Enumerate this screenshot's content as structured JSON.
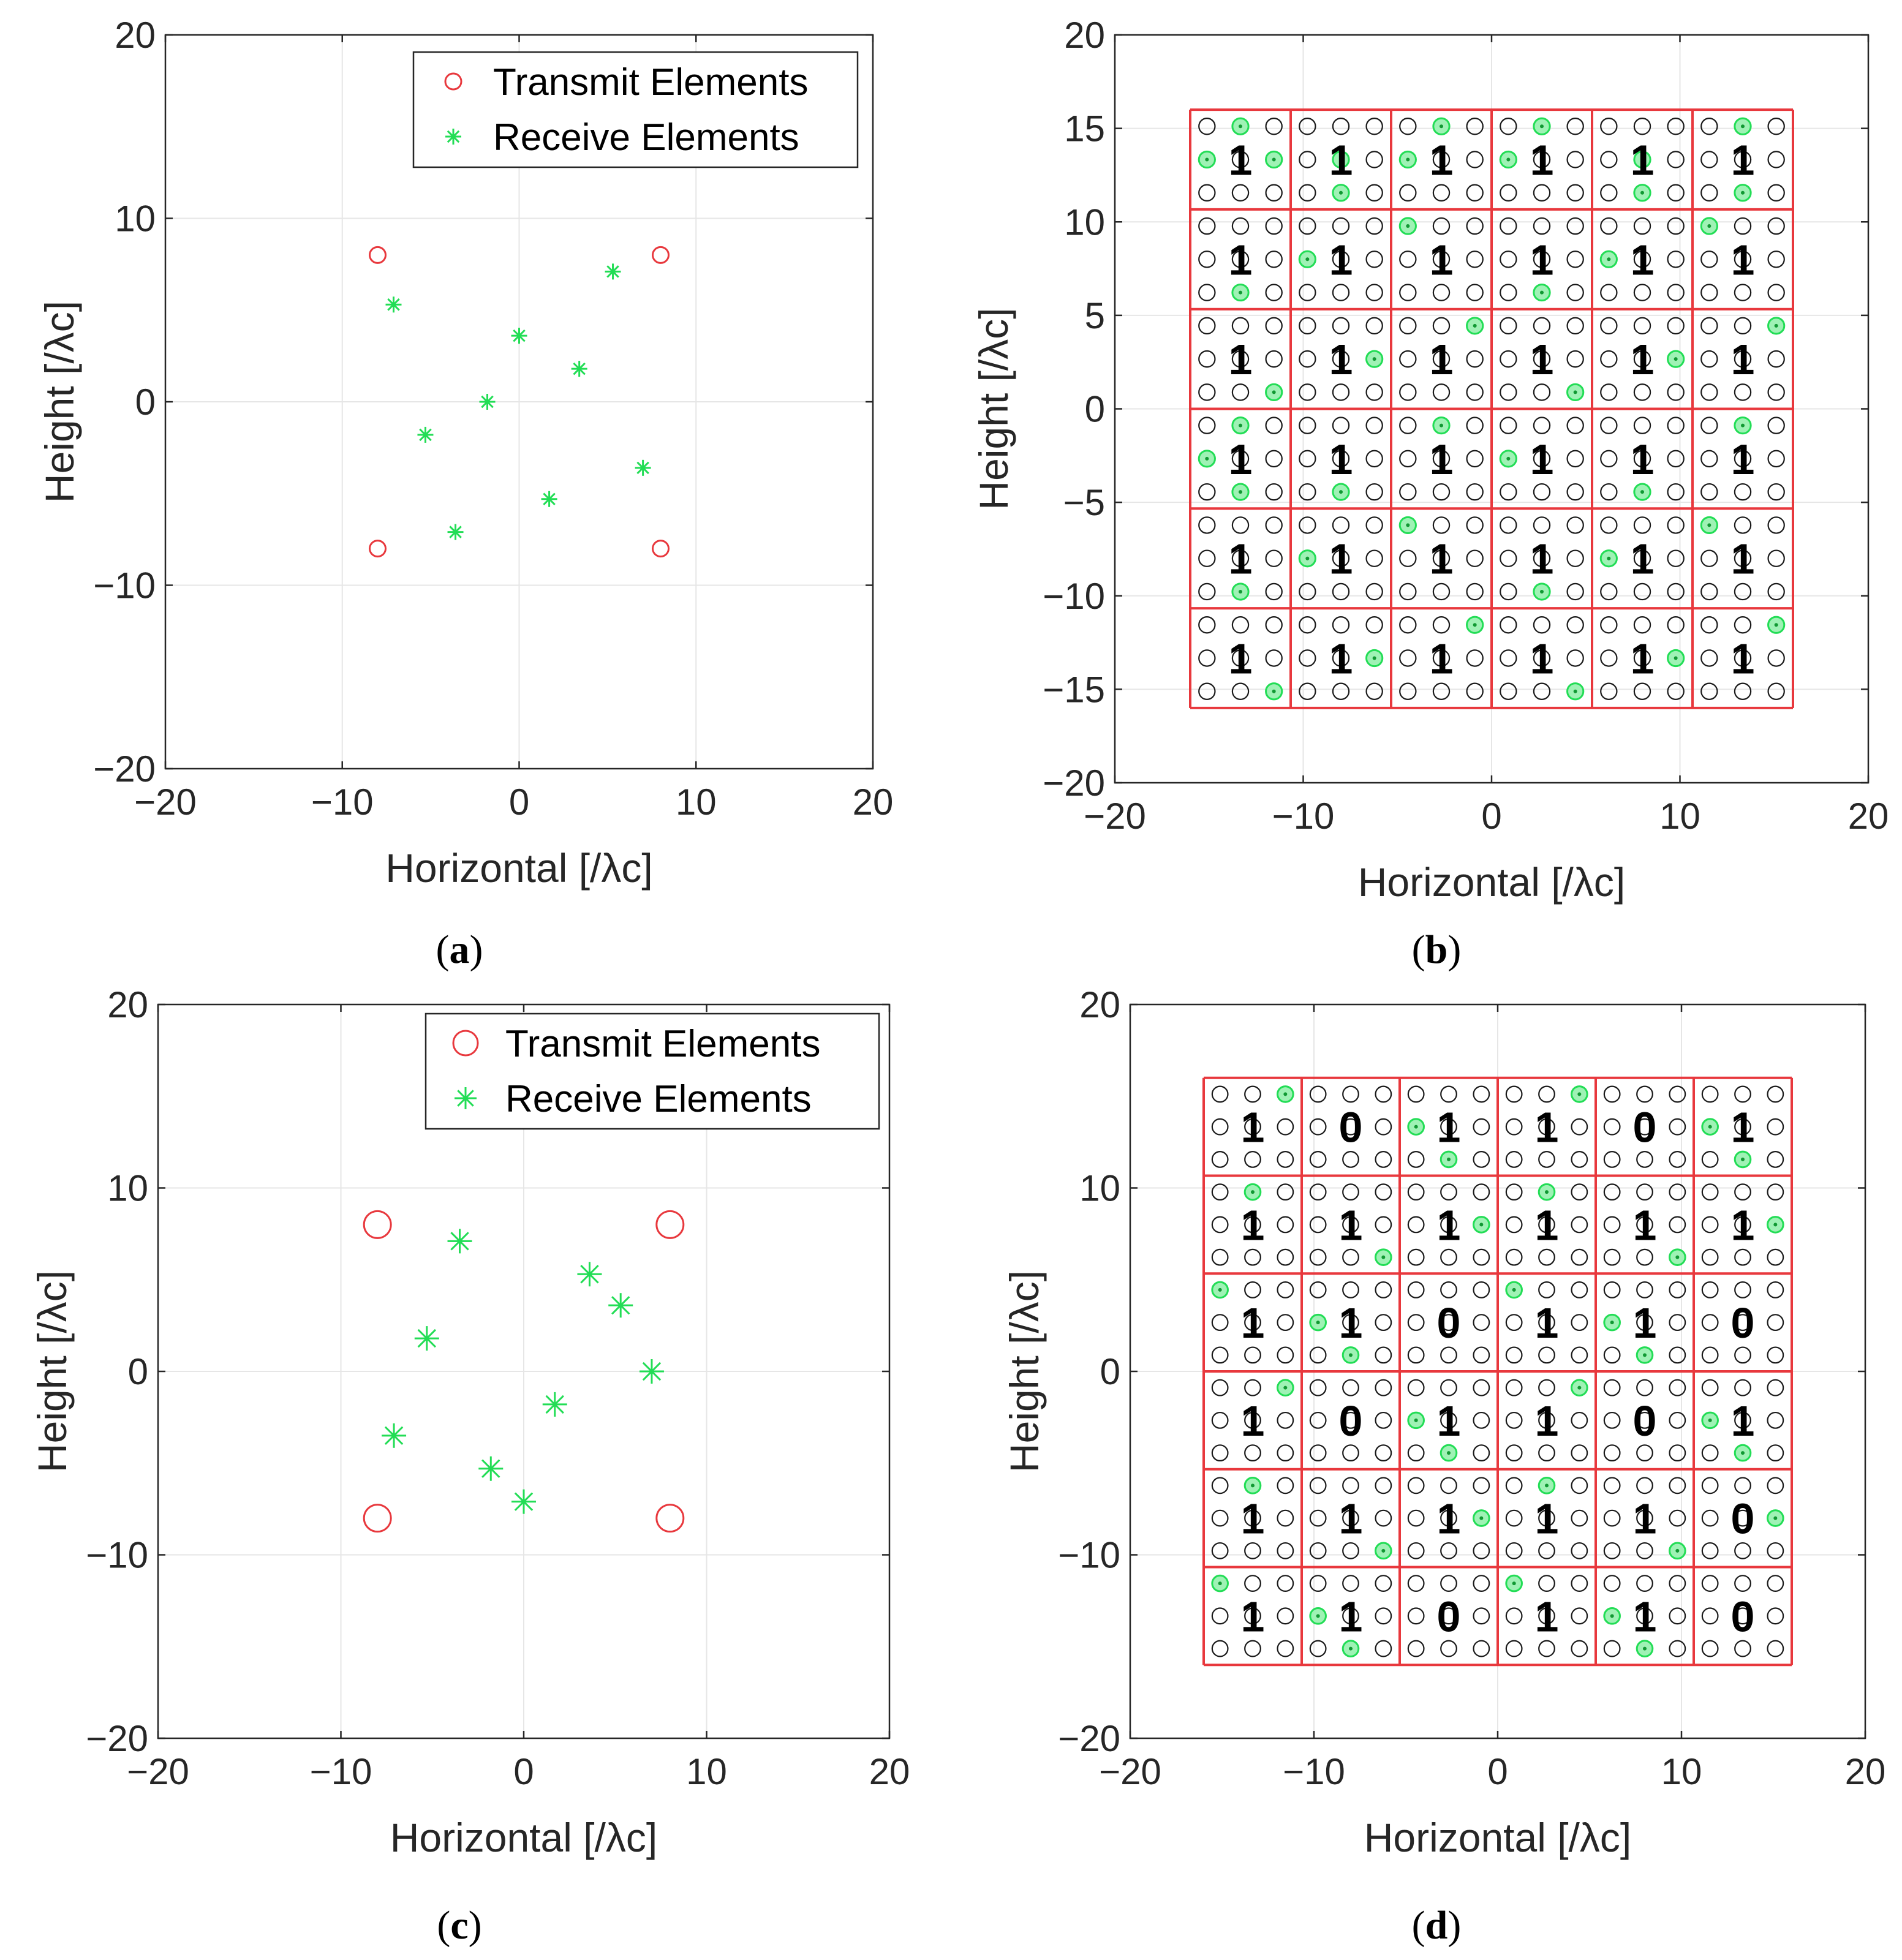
{
  "colors": {
    "transmit": "#e8383d",
    "receive": "#22dd55",
    "grid": "#e6e6e6",
    "axis": "#262626",
    "element": "#1a1a1a"
  },
  "captions": {
    "a": "a",
    "b": "b",
    "c": "c",
    "d": "d"
  },
  "chart_data": [
    {
      "id": "a",
      "type": "scatter",
      "xlabel": "Horizontal [/λc]",
      "ylabel": "Height [/λc]",
      "xlim": [
        -20,
        20
      ],
      "ylim": [
        -20,
        20
      ],
      "xticks": [
        -20,
        -10,
        0,
        10,
        20
      ],
      "yticks": [
        -20,
        -10,
        0,
        10,
        20
      ],
      "tick_labels": [
        "−20",
        "−10",
        "0",
        "10",
        "20"
      ],
      "grid": true,
      "legend_position": "top-right",
      "series": [
        {
          "name": "Transmit Elements",
          "marker": "circle",
          "size": "small",
          "points": [
            [
              -8,
              8
            ],
            [
              8,
              8
            ],
            [
              -8,
              -8
            ],
            [
              8,
              -8
            ]
          ]
        },
        {
          "name": "Receive Elements",
          "marker": "asterisk",
          "size": "small",
          "points": [
            [
              -7.1,
              5.3
            ],
            [
              5.3,
              7.1
            ],
            [
              0,
              3.6
            ],
            [
              3.4,
              1.8
            ],
            [
              -1.8,
              0
            ],
            [
              -5.3,
              -1.8
            ],
            [
              7.0,
              -3.6
            ],
            [
              1.7,
              -5.3
            ],
            [
              -3.6,
              -7.1
            ]
          ]
        }
      ]
    },
    {
      "id": "b",
      "type": "scatter",
      "xlabel": "Horizontal [/λc]",
      "ylabel": "Height [/λc]",
      "xlim": [
        -20,
        20
      ],
      "ylim": [
        -20,
        20
      ],
      "xticks": [
        -20,
        -10,
        0,
        10,
        20
      ],
      "yticks": [
        -20,
        -15,
        -10,
        -5,
        0,
        5,
        10,
        15,
        20
      ],
      "tick_labels": [
        "−20",
        "−15",
        "−10",
        "−5",
        "0",
        "5",
        "10",
        "15",
        "20"
      ],
      "grid": true,
      "subarray_extent": [
        -16,
        16
      ],
      "bits": [
        [
          "1",
          "1",
          "1",
          "1",
          "1",
          "1"
        ],
        [
          "1",
          "1",
          "1",
          "1",
          "1",
          "1"
        ],
        [
          "1",
          "1",
          "1",
          "1",
          "1",
          "1"
        ],
        [
          "1",
          "1",
          "1",
          "1",
          "1",
          "1"
        ],
        [
          "1",
          "1",
          "1",
          "1",
          "1",
          "1"
        ],
        [
          "1",
          "1",
          "1",
          "1",
          "1",
          "1"
        ]
      ],
      "active": [
        [
          [
            1,
            0
          ],
          [
            0,
            1
          ],
          [
            1,
            2
          ]
        ],
        [
          [
            1,
            1
          ],
          [
            2,
            1
          ]
        ],
        [
          [
            1,
            0
          ],
          [
            0,
            1
          ]
        ],
        [
          [
            1,
            0
          ],
          [
            0,
            1
          ]
        ],
        [
          [
            1,
            1
          ],
          [
            2,
            1
          ]
        ],
        [
          [
            0,
            1
          ],
          [
            2,
            1
          ]
        ],
        [
          [
            2,
            1
          ]
        ],
        [
          [
            1,
            0
          ]
        ],
        [
          [
            0,
            0
          ]
        ],
        [
          [
            2,
            1
          ]
        ],
        [
          [
            1,
            0
          ]
        ],
        [
          [
            0,
            0
          ]
        ],
        [
          [
            2,
            2
          ]
        ],
        [
          [
            1,
            2
          ]
        ],
        [
          [
            0,
            2
          ]
        ],
        [
          [
            2,
            2
          ]
        ],
        [
          [
            1,
            2
          ]
        ],
        [
          [
            0,
            2
          ]
        ],
        [
          [
            1,
            0
          ],
          [
            0,
            1
          ],
          [
            2,
            1
          ]
        ],
        [
          [
            2,
            1
          ]
        ],
        [
          [
            0,
            1
          ]
        ],
        [
          [
            1,
            0
          ]
        ],
        [
          [
            2,
            1
          ]
        ],
        [
          [
            0,
            1
          ]
        ],
        [
          [
            2,
            1
          ]
        ],
        [
          [
            1,
            0
          ]
        ],
        [
          [
            0,
            0
          ]
        ],
        [
          [
            2,
            1
          ]
        ],
        [
          [
            1,
            0
          ]
        ],
        [
          [
            0,
            0
          ]
        ],
        [
          [
            2,
            2
          ]
        ],
        [
          [
            1,
            2
          ]
        ],
        [
          [
            0,
            2
          ]
        ],
        [
          [
            2,
            2
          ]
        ],
        [
          [
            1,
            2
          ]
        ],
        [
          [
            0,
            2
          ]
        ]
      ]
    },
    {
      "id": "c",
      "type": "scatter",
      "xlabel": "Horizontal [/λc]",
      "ylabel": "Height [/λc]",
      "xlim": [
        -20,
        20
      ],
      "ylim": [
        -20,
        20
      ],
      "xticks": [
        -20,
        -10,
        0,
        10,
        20
      ],
      "yticks": [
        -20,
        -10,
        0,
        10,
        20
      ],
      "tick_labels": [
        "−20",
        "−10",
        "0",
        "10",
        "20"
      ],
      "grid": true,
      "legend_position": "top-right",
      "series": [
        {
          "name": "Transmit Elements",
          "marker": "circle",
          "size": "large",
          "points": [
            [
              -8,
              8
            ],
            [
              8,
              8
            ],
            [
              -8,
              -8
            ],
            [
              8,
              -8
            ]
          ]
        },
        {
          "name": "Receive Elements",
          "marker": "asterisk",
          "size": "large",
          "points": [
            [
              -3.5,
              7.1
            ],
            [
              3.6,
              5.3
            ],
            [
              5.3,
              3.6
            ],
            [
              -5.3,
              1.8
            ],
            [
              7.0,
              0
            ],
            [
              1.7,
              -1.8
            ],
            [
              -7.1,
              -3.5
            ],
            [
              -1.8,
              -5.3
            ],
            [
              0,
              -7.1
            ]
          ]
        }
      ]
    },
    {
      "id": "d",
      "type": "scatter",
      "xlabel": "Horizontal [/λc]",
      "ylabel": "Height [/λc]",
      "xlim": [
        -20,
        20
      ],
      "ylim": [
        -20,
        20
      ],
      "xticks": [
        -20,
        -10,
        0,
        10,
        20
      ],
      "yticks": [
        -20,
        -10,
        0,
        10,
        20
      ],
      "tick_labels": [
        "−20",
        "−10",
        "0",
        "10",
        "20"
      ],
      "grid": true,
      "subarray_extent": [
        -16,
        16
      ],
      "bits": [
        [
          "1",
          "0",
          "1",
          "1",
          "0",
          "1"
        ],
        [
          "1",
          "1",
          "1",
          "1",
          "1",
          "1"
        ],
        [
          "1",
          "1",
          "0",
          "1",
          "1",
          "0"
        ],
        [
          "1",
          "0",
          "1",
          "1",
          "0",
          "1"
        ],
        [
          "1",
          "1",
          "1",
          "1",
          "1",
          "0"
        ],
        [
          "1",
          "1",
          "0",
          "1",
          "1",
          "0"
        ]
      ],
      "active": [
        [
          [
            0,
            2
          ]
        ],
        [],
        [
          [
            1,
            0
          ],
          [
            2,
            1
          ]
        ],
        [
          [
            0,
            2
          ]
        ],
        [],
        [
          [
            1,
            0
          ],
          [
            2,
            1
          ]
        ],
        [
          [
            0,
            1
          ]
        ],
        [
          [
            2,
            2
          ]
        ],
        [
          [
            1,
            2
          ]
        ],
        [
          [
            0,
            1
          ]
        ],
        [
          [
            2,
            2
          ]
        ],
        [
          [
            1,
            2
          ]
        ],
        [
          [
            0,
            0
          ]
        ],
        [
          [
            1,
            0
          ],
          [
            2,
            1
          ]
        ],
        [],
        [
          [
            0,
            0
          ]
        ],
        [
          [
            1,
            0
          ],
          [
            2,
            1
          ]
        ],
        [],
        [
          [
            0,
            2
          ]
        ],
        [],
        [
          [
            1,
            0
          ],
          [
            2,
            1
          ]
        ],
        [
          [
            0,
            2
          ]
        ],
        [],
        [
          [
            1,
            0
          ],
          [
            2,
            1
          ]
        ],
        [
          [
            0,
            1
          ]
        ],
        [
          [
            2,
            2
          ]
        ],
        [
          [
            1,
            2
          ]
        ],
        [
          [
            0,
            1
          ]
        ],
        [
          [
            2,
            2
          ]
        ],
        [
          [
            1,
            2
          ]
        ],
        [
          [
            0,
            0
          ]
        ],
        [
          [
            1,
            0
          ],
          [
            2,
            1
          ]
        ],
        [],
        [
          [
            0,
            0
          ]
        ],
        [
          [
            1,
            0
          ],
          [
            2,
            1
          ]
        ],
        []
      ]
    }
  ]
}
